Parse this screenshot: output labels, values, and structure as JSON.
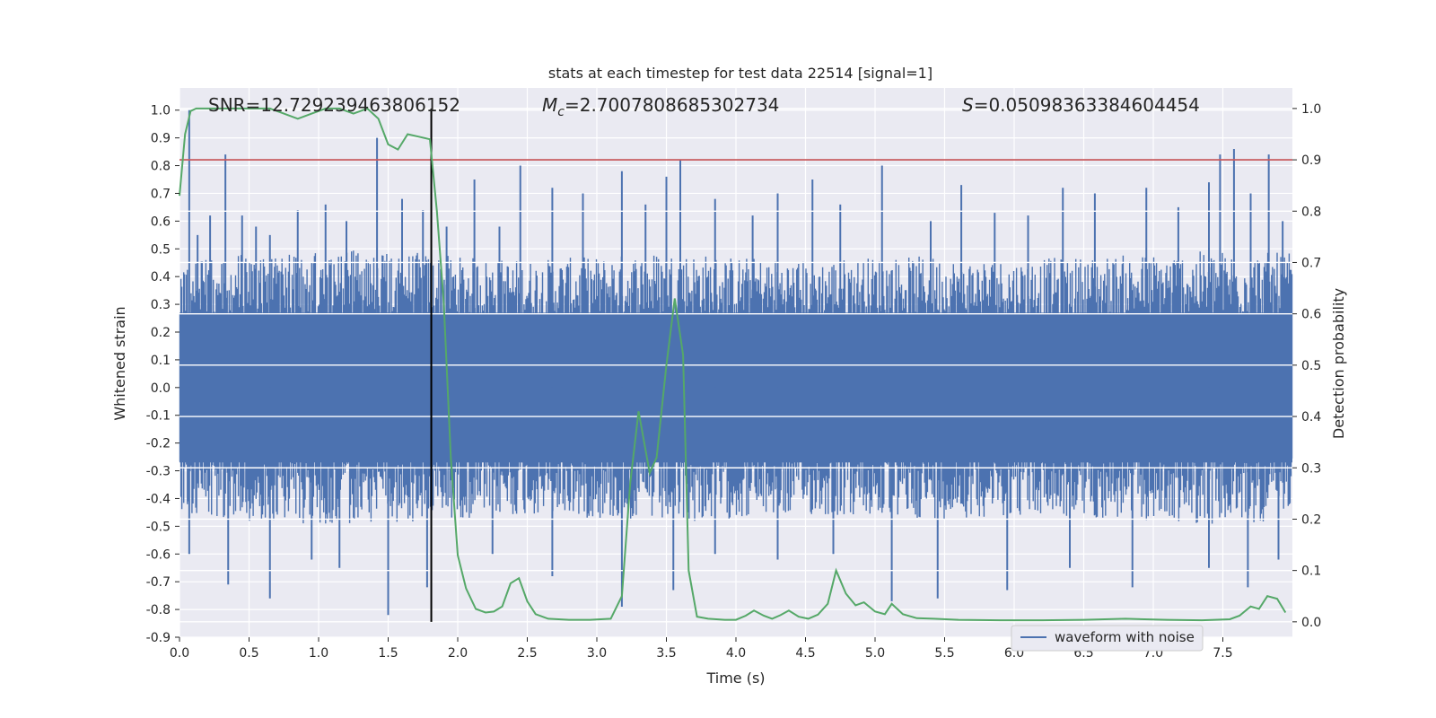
{
  "chart_data": {
    "type": "line",
    "title": "stats at each timestep for test data 22514 [signal=1]",
    "xlabel": "Time (s)",
    "ylabel_left": "Whitened strain",
    "ylabel_right": "Detection probability",
    "xlim": [
      0.0,
      8.0
    ],
    "ylim_left": [
      -0.9,
      1.08
    ],
    "ylim_right": [
      -0.03,
      1.04
    ],
    "x_ticks": [
      "0.0",
      "0.5",
      "1.0",
      "1.5",
      "2.0",
      "2.5",
      "3.0",
      "3.5",
      "4.0",
      "4.5",
      "5.0",
      "5.5",
      "6.0",
      "6.5",
      "7.0",
      "7.5"
    ],
    "y_left_ticks": [
      "1.0",
      "0.9",
      "0.8",
      "0.7",
      "0.6",
      "0.5",
      "0.4",
      "0.3",
      "0.2",
      "0.1",
      "0.0",
      "-0.1",
      "-0.2",
      "-0.3",
      "-0.4",
      "-0.5",
      "-0.6",
      "-0.7",
      "-0.8",
      "-0.9"
    ],
    "y_right_ticks": [
      "1.0",
      "0.9",
      "0.8",
      "0.7",
      "0.6",
      "0.5",
      "0.4",
      "0.3",
      "0.2",
      "0.1",
      "0.0"
    ],
    "annotations": {
      "snr": "SNR=12.729239463806152",
      "mc_symbol": "M",
      "mc_sub": "c",
      "mc_value": "=2.7007808685302734",
      "s_symbol": "S",
      "s_value": "=0.05098363384604454"
    },
    "grid": true,
    "legend": {
      "placement": "lower-right",
      "entries": [
        "waveform with noise"
      ]
    },
    "threshold_probability": 0.9,
    "marker_time": 1.81,
    "colors": {
      "background": "#eaeaf2",
      "waveform": "#4c72b0",
      "probability": "#55a868",
      "threshold": "#c44e52",
      "marker": "#000000",
      "grid": "#ffffff"
    },
    "waveform_envelope": {
      "x": [
        0.0,
        0.5,
        1.0,
        1.5,
        1.8,
        2.0,
        2.5,
        3.0,
        3.5,
        4.0,
        4.5,
        5.0,
        5.5,
        6.0,
        6.5,
        7.0,
        7.5,
        8.0
      ],
      "upper_typical": [
        0.42,
        0.44,
        0.45,
        0.45,
        0.44,
        0.43,
        0.42,
        0.43,
        0.45,
        0.43,
        0.42,
        0.43,
        0.43,
        0.42,
        0.43,
        0.44,
        0.45,
        0.44
      ],
      "lower_typical": [
        -0.42,
        -0.44,
        -0.45,
        -0.45,
        -0.44,
        -0.43,
        -0.42,
        -0.43,
        -0.45,
        -0.43,
        -0.42,
        -0.43,
        -0.43,
        -0.42,
        -0.43,
        -0.44,
        -0.45,
        -0.44
      ]
    },
    "waveform_peaks": [
      {
        "x": 0.07,
        "y": 1.0
      },
      {
        "x": 0.13,
        "y": 0.55
      },
      {
        "x": 0.22,
        "y": 0.62
      },
      {
        "x": 0.33,
        "y": 0.84
      },
      {
        "x": 0.45,
        "y": 0.62
      },
      {
        "x": 0.55,
        "y": 0.58
      },
      {
        "x": 0.65,
        "y": 0.55
      },
      {
        "x": 0.85,
        "y": 0.64
      },
      {
        "x": 1.05,
        "y": 0.66
      },
      {
        "x": 1.2,
        "y": 0.6
      },
      {
        "x": 1.42,
        "y": 0.9
      },
      {
        "x": 1.6,
        "y": 0.68
      },
      {
        "x": 1.75,
        "y": 0.64
      },
      {
        "x": 1.92,
        "y": 0.58
      },
      {
        "x": 2.12,
        "y": 0.75
      },
      {
        "x": 2.3,
        "y": 0.58
      },
      {
        "x": 2.45,
        "y": 0.8
      },
      {
        "x": 2.68,
        "y": 0.72
      },
      {
        "x": 2.9,
        "y": 0.7
      },
      {
        "x": 3.18,
        "y": 0.78
      },
      {
        "x": 3.35,
        "y": 0.66
      },
      {
        "x": 3.5,
        "y": 0.76
      },
      {
        "x": 3.6,
        "y": 0.82
      },
      {
        "x": 3.85,
        "y": 0.68
      },
      {
        "x": 4.12,
        "y": 0.62
      },
      {
        "x": 4.3,
        "y": 0.7
      },
      {
        "x": 4.55,
        "y": 0.75
      },
      {
        "x": 4.75,
        "y": 0.66
      },
      {
        "x": 5.05,
        "y": 0.8
      },
      {
        "x": 5.4,
        "y": 0.6
      },
      {
        "x": 5.62,
        "y": 0.73
      },
      {
        "x": 5.86,
        "y": 0.63
      },
      {
        "x": 6.1,
        "y": 0.62
      },
      {
        "x": 6.35,
        "y": 0.72
      },
      {
        "x": 6.58,
        "y": 0.7
      },
      {
        "x": 6.95,
        "y": 0.72
      },
      {
        "x": 7.18,
        "y": 0.65
      },
      {
        "x": 7.4,
        "y": 0.74
      },
      {
        "x": 7.48,
        "y": 0.84
      },
      {
        "x": 7.58,
        "y": 0.86
      },
      {
        "x": 7.7,
        "y": 0.7
      },
      {
        "x": 7.83,
        "y": 0.84
      },
      {
        "x": 7.93,
        "y": 0.6
      }
    ],
    "waveform_troughs": [
      {
        "x": 0.07,
        "y": -0.6
      },
      {
        "x": 0.35,
        "y": -0.71
      },
      {
        "x": 0.65,
        "y": -0.76
      },
      {
        "x": 0.95,
        "y": -0.62
      },
      {
        "x": 1.15,
        "y": -0.65
      },
      {
        "x": 1.5,
        "y": -0.82
      },
      {
        "x": 1.78,
        "y": -0.72
      },
      {
        "x": 2.25,
        "y": -0.6
      },
      {
        "x": 2.68,
        "y": -0.68
      },
      {
        "x": 3.18,
        "y": -0.79
      },
      {
        "x": 3.55,
        "y": -0.73
      },
      {
        "x": 3.85,
        "y": -0.6
      },
      {
        "x": 4.3,
        "y": -0.62
      },
      {
        "x": 4.7,
        "y": -0.6
      },
      {
        "x": 5.12,
        "y": -0.77
      },
      {
        "x": 5.45,
        "y": -0.76
      },
      {
        "x": 5.95,
        "y": -0.73
      },
      {
        "x": 6.4,
        "y": -0.65
      },
      {
        "x": 6.85,
        "y": -0.72
      },
      {
        "x": 7.4,
        "y": -0.65
      },
      {
        "x": 7.68,
        "y": -0.72
      },
      {
        "x": 7.9,
        "y": -0.62
      }
    ],
    "probability": {
      "x": [
        0.0,
        0.04,
        0.08,
        0.12,
        0.2,
        0.3,
        0.45,
        0.55,
        0.65,
        0.75,
        0.85,
        0.95,
        1.05,
        1.15,
        1.25,
        1.35,
        1.43,
        1.5,
        1.57,
        1.64,
        1.72,
        1.8,
        1.85,
        1.9,
        1.95,
        2.0,
        2.06,
        2.13,
        2.2,
        2.26,
        2.32,
        2.38,
        2.44,
        2.5,
        2.56,
        2.65,
        2.8,
        2.95,
        3.1,
        3.18,
        3.24,
        3.3,
        3.38,
        3.43,
        3.5,
        3.56,
        3.62,
        3.66,
        3.72,
        3.8,
        3.92,
        4.0,
        4.07,
        4.13,
        4.2,
        4.26,
        4.32,
        4.38,
        4.45,
        4.52,
        4.59,
        4.66,
        4.72,
        4.79,
        4.86,
        4.92,
        5.0,
        5.07,
        5.12,
        5.2,
        5.3,
        5.42,
        5.6,
        5.9,
        6.2,
        6.5,
        6.8,
        7.1,
        7.35,
        7.55,
        7.62,
        7.7,
        7.76,
        7.82,
        7.89,
        7.95
      ],
      "y": [
        0.83,
        0.95,
        0.995,
        1.0,
        1.0,
        1.0,
        1.0,
        1.0,
        1.0,
        0.99,
        0.98,
        0.99,
        1.0,
        1.0,
        0.99,
        1.0,
        0.98,
        0.93,
        0.92,
        0.95,
        0.945,
        0.94,
        0.8,
        0.62,
        0.32,
        0.13,
        0.065,
        0.025,
        0.018,
        0.02,
        0.03,
        0.075,
        0.085,
        0.04,
        0.015,
        0.006,
        0.004,
        0.004,
        0.006,
        0.05,
        0.27,
        0.41,
        0.29,
        0.32,
        0.5,
        0.63,
        0.52,
        0.1,
        0.01,
        0.006,
        0.004,
        0.004,
        0.012,
        0.022,
        0.012,
        0.006,
        0.013,
        0.022,
        0.01,
        0.006,
        0.014,
        0.035,
        0.1,
        0.055,
        0.032,
        0.038,
        0.02,
        0.015,
        0.035,
        0.015,
        0.007,
        0.006,
        0.004,
        0.003,
        0.003,
        0.004,
        0.006,
        0.004,
        0.003,
        0.005,
        0.012,
        0.03,
        0.025,
        0.05,
        0.045,
        0.018
      ]
    }
  }
}
